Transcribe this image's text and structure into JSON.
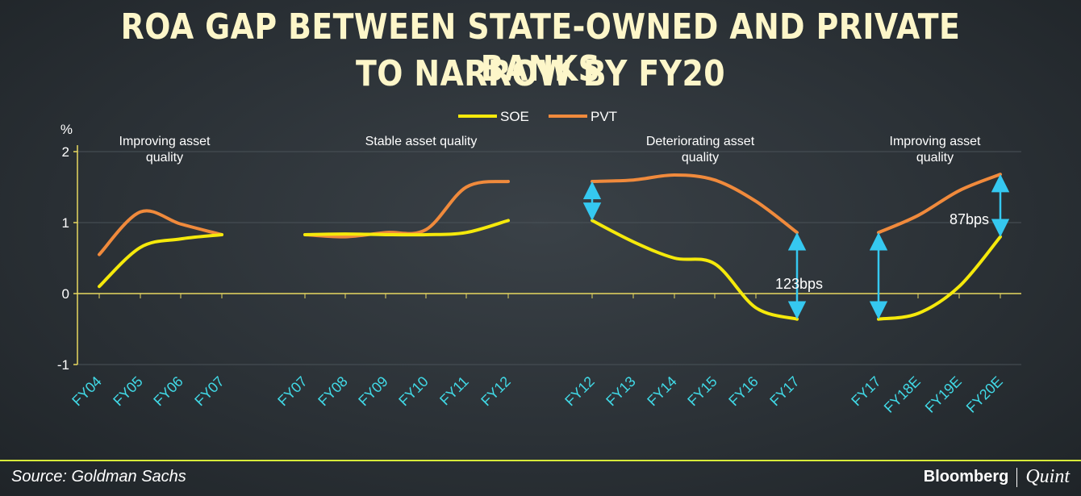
{
  "title_line1": "ROA GAP BETWEEN STATE-OWNED AND PRIVATE BANKS",
  "title_line2": "TO NARROW BY FY20",
  "footer": {
    "source": "Source: Goldman Sachs",
    "brand_a": "Bloomberg",
    "brand_b": "Quint"
  },
  "colors": {
    "soe": "#f5e90b",
    "pvt": "#f08a3c",
    "arrow": "#35c8f0",
    "axis": "#e8d860",
    "tick": "#41d9e6",
    "text": "#ffffff"
  },
  "chart_data": {
    "type": "line",
    "ylabel": "%",
    "ylim": [
      -1,
      2
    ],
    "yticks": [
      -1,
      0,
      1,
      2
    ],
    "grid": true,
    "legend": {
      "placement": "top-center",
      "entries": [
        {
          "name": "SOE"
        },
        {
          "name": "PVT"
        }
      ]
    },
    "panels": [
      {
        "annotation": [
          "Improving asset",
          "quality"
        ],
        "categories": [
          "FY04",
          "FY05",
          "FY06",
          "FY07"
        ],
        "series": [
          {
            "name": "SOE",
            "values": [
              0.1,
              0.65,
              0.77,
              0.83
            ]
          },
          {
            "name": "PVT",
            "values": [
              0.55,
              1.15,
              0.98,
              0.83
            ]
          }
        ]
      },
      {
        "annotation": [
          "Stable asset quality"
        ],
        "categories": [
          "FY07",
          "FY08",
          "FY09",
          "FY10",
          "FY11",
          "FY12"
        ],
        "series": [
          {
            "name": "SOE",
            "values": [
              0.83,
              0.84,
              0.83,
              0.83,
              0.86,
              1.03
            ]
          },
          {
            "name": "PVT",
            "values": [
              0.83,
              0.8,
              0.86,
              0.9,
              1.5,
              1.58
            ]
          }
        ]
      },
      {
        "annotation": [
          "Deteriorating asset",
          "quality"
        ],
        "categories": [
          "FY12",
          "FY13",
          "FY14",
          "FY15",
          "FY16",
          "FY17"
        ],
        "series": [
          {
            "name": "SOE",
            "values": [
              1.03,
              0.73,
              0.5,
              0.42,
              -0.2,
              -0.36
            ]
          },
          {
            "name": "PVT",
            "values": [
              1.58,
              1.6,
              1.67,
              1.6,
              1.3,
              0.86
            ]
          }
        ],
        "gap_arrows": [
          {
            "at": "FY12",
            "label": ""
          },
          {
            "at": "FY17",
            "label": "123bps"
          }
        ]
      },
      {
        "annotation": [
          "Improving asset",
          "quality"
        ],
        "categories": [
          "FY17",
          "FY18E",
          "FY19E",
          "FY20E"
        ],
        "series": [
          {
            "name": "SOE",
            "values": [
              -0.36,
              -0.28,
              0.1,
              0.8
            ]
          },
          {
            "name": "PVT",
            "values": [
              0.86,
              1.1,
              1.45,
              1.68
            ]
          }
        ],
        "gap_arrows": [
          {
            "at": "FY17",
            "label": ""
          },
          {
            "at": "FY20E",
            "label": "87bps"
          }
        ]
      }
    ]
  }
}
